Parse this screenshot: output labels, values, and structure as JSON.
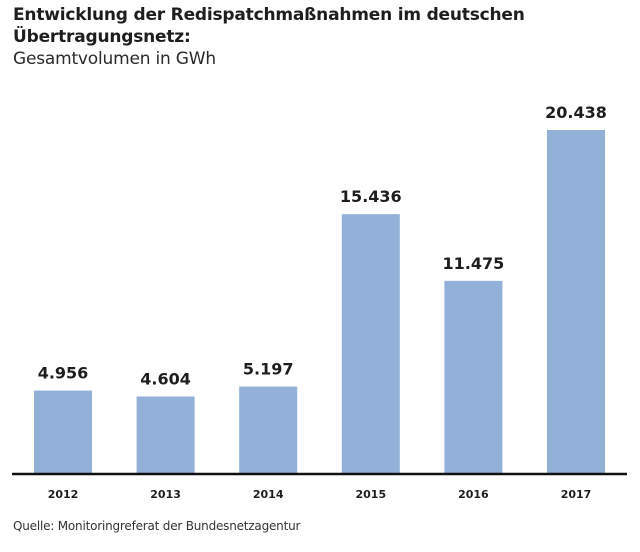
{
  "chart_data": {
    "type": "bar",
    "title": "Entwicklung der Redispatchmaßnahmen im deutschen Übertragungsnetz:",
    "title_lines": [
      "Entwicklung der Redispatchmaßnahmen im deutschen",
      "Übertragungsnetz:"
    ],
    "subtitle": "Gesamtvolumen in GWh",
    "xlabel": "",
    "ylabel": "",
    "categories": [
      "2012",
      "2013",
      "2014",
      "2015",
      "2016",
      "2017"
    ],
    "values": [
      4956,
      4604,
      5197,
      15436,
      11475,
      20438
    ],
    "value_labels": [
      "4.956",
      "4.604",
      "5.197",
      "15.436",
      "11.475",
      "20.438"
    ],
    "ylim": [
      0,
      20438
    ],
    "grid": false,
    "legend": "none",
    "bar_color": "#93b1d8",
    "axis_color": "#111111",
    "source": "Quelle: Monitoringreferat der Bundesnetzagentur"
  }
}
